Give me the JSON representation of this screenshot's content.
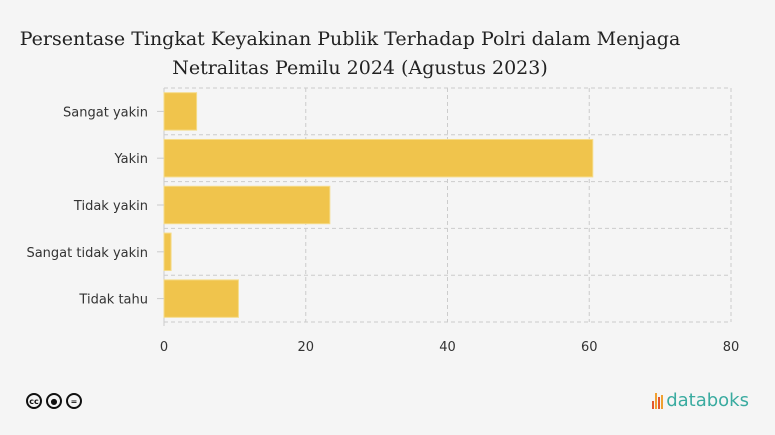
{
  "chart_data": {
    "type": "bar",
    "orientation": "horizontal",
    "title_lines": [
      "Persentase Tingkat Keyakinan Publik Terhadap Polri dalam Menjaga",
      "Netralitas Pemilu 2024 (Agustus 2023)"
    ],
    "categories": [
      "Sangat yakin",
      "Yakin",
      "Tidak yakin",
      "Sangat tidak yakin",
      "Tidak tahu"
    ],
    "values": [
      4.6,
      60.5,
      23.4,
      1.0,
      10.5
    ],
    "xlim": [
      0,
      80
    ],
    "xticks": [
      0,
      20,
      40,
      60,
      80
    ],
    "grid": true,
    "bar_color": "#f0c44c"
  },
  "footer": {
    "license_icons": [
      "cc-icon",
      "by-icon",
      "nd-icon"
    ],
    "cc_text": "cc",
    "brand": "databoks",
    "brand_color": "#3aaba0"
  }
}
